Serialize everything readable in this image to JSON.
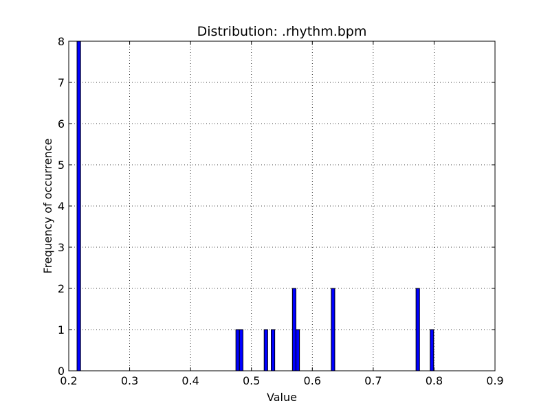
{
  "chart_data": {
    "type": "bar",
    "title": "Distribution: .rhythm.bpm",
    "xlabel": "Value",
    "ylabel": "Frequency of occurrence",
    "xlim": [
      0.2,
      0.9
    ],
    "ylim": [
      0,
      8
    ],
    "xticks": [
      "0.2",
      "0.3",
      "0.4",
      "0.5",
      "0.6",
      "0.7",
      "0.8",
      "0.9"
    ],
    "yticks": [
      "0",
      "1",
      "2",
      "3",
      "4",
      "5",
      "6",
      "7",
      "8"
    ],
    "grid": true,
    "bin_width": 0.0058,
    "bars": [
      {
        "x": 0.2136,
        "value": 8
      },
      {
        "x": 0.4745,
        "value": 1
      },
      {
        "x": 0.4803,
        "value": 1
      },
      {
        "x": 0.5209,
        "value": 1
      },
      {
        "x": 0.5325,
        "value": 1
      },
      {
        "x": 0.5673,
        "value": 2
      },
      {
        "x": 0.5731,
        "value": 1
      },
      {
        "x": 0.6311,
        "value": 2
      },
      {
        "x": 0.7703,
        "value": 2
      },
      {
        "x": 0.7935,
        "value": 1
      }
    ],
    "colors": {
      "bar": "#0000ff",
      "edge": "#000000"
    }
  }
}
